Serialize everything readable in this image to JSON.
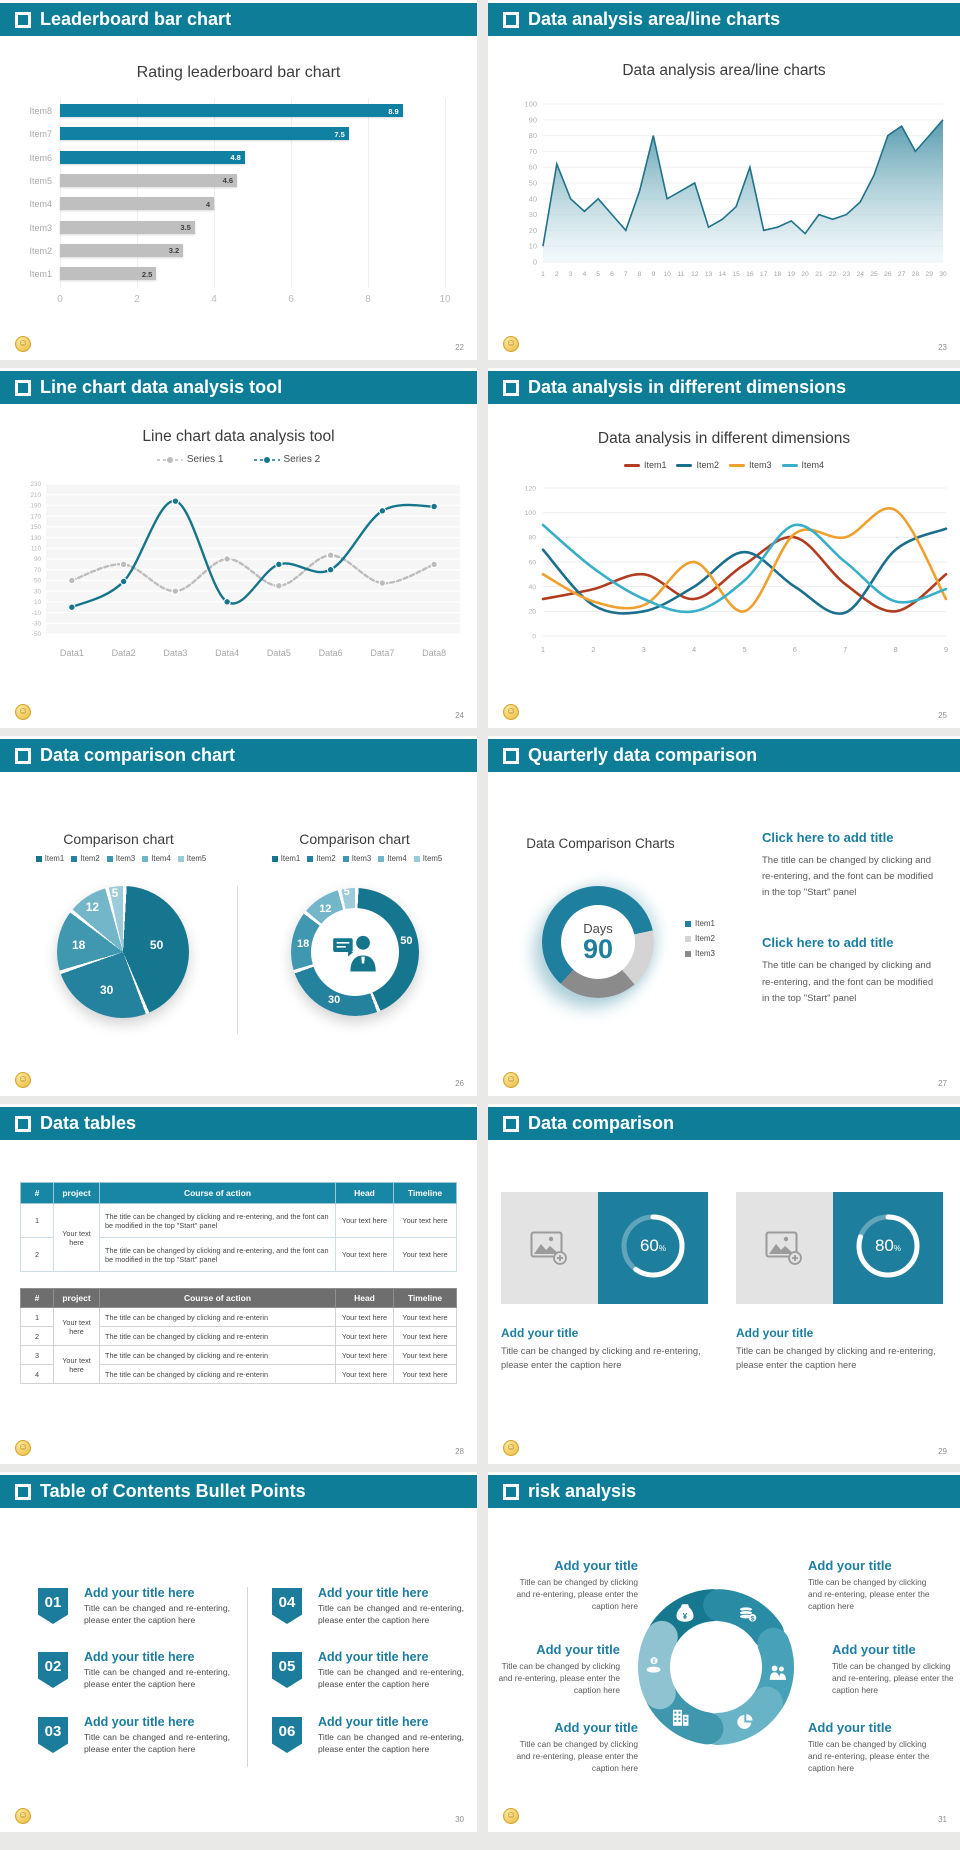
{
  "accent": "#0e7d97",
  "slides": [
    {
      "header": "Leaderboard bar chart",
      "page": "22"
    },
    {
      "header": "Data analysis area/line charts",
      "page": "23"
    },
    {
      "header": "Line chart data analysis tool",
      "page": "24"
    },
    {
      "header": "Data analysis in different dimensions",
      "page": "25"
    },
    {
      "header": "Data comparison chart",
      "page": "26"
    },
    {
      "header": "Quarterly data comparison",
      "page": "27"
    },
    {
      "header": "Data tables",
      "page": "28"
    },
    {
      "header": "Data comparison",
      "page": "29"
    },
    {
      "header": "Table of Contents Bullet Points",
      "page": "30"
    },
    {
      "header": "risk analysis",
      "page": "31"
    }
  ],
  "chart_data": [
    {
      "id": "leaderboard",
      "type": "bar",
      "orientation": "horizontal",
      "title": "Rating leaderboard bar chart",
      "categories": [
        "Item8",
        "Item7",
        "Item6",
        "Item5",
        "Item4",
        "Item3",
        "Item2",
        "Item1"
      ],
      "values": [
        8.9,
        7.5,
        4.8,
        4.6,
        4,
        3.5,
        3.2,
        2.5
      ],
      "bar_colors": [
        "#1081a3",
        "#1081a3",
        "#1081a3",
        "#bfbfbf",
        "#bfbfbf",
        "#bfbfbf",
        "#bfbfbf",
        "#bfbfbf"
      ],
      "xlim": [
        0,
        10
      ],
      "xticks": [
        0,
        2,
        4,
        6,
        8,
        10
      ],
      "grid": "vertical"
    },
    {
      "id": "area",
      "type": "area",
      "title": "Data analysis area/line charts",
      "x": [
        1,
        2,
        3,
        4,
        5,
        6,
        7,
        8,
        9,
        10,
        11,
        12,
        13,
        14,
        15,
        16,
        17,
        18,
        19,
        20,
        21,
        22,
        23,
        24,
        25,
        26,
        27,
        28,
        29,
        30
      ],
      "values": [
        10,
        62,
        40,
        32,
        40,
        30,
        20,
        45,
        80,
        40,
        45,
        50,
        22,
        27,
        35,
        60,
        20,
        22,
        26,
        18,
        30,
        27,
        30,
        38,
        55,
        80,
        86,
        70,
        80,
        90
      ],
      "ylim": [
        0,
        100
      ],
      "ytick_step": 10,
      "line_color": "#20718a",
      "grid": "horizontal"
    },
    {
      "id": "twolines",
      "type": "line",
      "title": "Line chart data analysis tool",
      "categories": [
        "Data1",
        "Data2",
        "Data3",
        "Data4",
        "Data5",
        "Data6",
        "Data7",
        "Data8"
      ],
      "series": [
        {
          "name": "Series 1",
          "color": "#bcbcbc",
          "dashed": true,
          "values": [
            50,
            80,
            30,
            90,
            40,
            97,
            45,
            80
          ]
        },
        {
          "name": "Series 2",
          "color": "#15758d",
          "dashed": false,
          "values": [
            0,
            48,
            198,
            10,
            80,
            70,
            180,
            188
          ]
        }
      ],
      "ylim": [
        -50,
        230
      ],
      "ytick_step": 20,
      "legend_position": "top",
      "plot_bg": "#f6f6f6"
    },
    {
      "id": "dimensions",
      "type": "line",
      "title": "Data analysis in different dimensions",
      "x": [
        1,
        2,
        3,
        4,
        5,
        6,
        7,
        8,
        9
      ],
      "series": [
        {
          "name": "Item1",
          "color": "#b23c20",
          "values": [
            30,
            38,
            50,
            30,
            58,
            80,
            42,
            20,
            50
          ]
        },
        {
          "name": "Item2",
          "color": "#1b6f8c",
          "values": [
            70,
            25,
            20,
            40,
            68,
            40,
            19,
            70,
            87
          ]
        },
        {
          "name": "Item3",
          "color": "#efa02f",
          "values": [
            50,
            28,
            25,
            60,
            20,
            83,
            80,
            102,
            30
          ]
        },
        {
          "name": "Item4",
          "color": "#38aec8",
          "values": [
            90,
            55,
            30,
            20,
            45,
            90,
            60,
            28,
            38
          ]
        }
      ],
      "ylim": [
        0,
        120
      ],
      "ytick_step": 20,
      "legend_position": "top",
      "grid": "horizontal"
    },
    {
      "id": "comparison-pie",
      "type": "pie",
      "title": "Comparison chart",
      "legend": [
        "Item1",
        "Item2",
        "Item3",
        "Item4",
        "Item5"
      ],
      "values": [
        50,
        30,
        18,
        12,
        5
      ],
      "colors": [
        "#16758f",
        "#25829e",
        "#3f97b0",
        "#73b6c9",
        "#9ccbd9"
      ]
    },
    {
      "id": "comparison-donut",
      "type": "pie",
      "subtype": "donut",
      "title": "Comparison chart",
      "legend": [
        "Item1",
        "Item2",
        "Item3",
        "Item4",
        "Item5"
      ],
      "values": [
        50,
        30,
        18,
        12,
        5
      ],
      "colors": [
        "#16758f",
        "#25829e",
        "#3f97b0",
        "#73b6c9",
        "#9ccbd9"
      ],
      "center_icon": "businessman"
    },
    {
      "id": "days-donut",
      "type": "pie",
      "subtype": "donut",
      "title": "Data Comparison Charts",
      "legend": [
        "Item1",
        "Item2",
        "Item3"
      ],
      "values": [
        60,
        17,
        23
      ],
      "colors": [
        "#1e7f9e",
        "#d4d4d4",
        "#8b8b8b"
      ],
      "center_label": "Days",
      "center_value": "90"
    },
    {
      "id": "progress-rings",
      "type": "pie",
      "subtype": "ring",
      "values": [
        60,
        80
      ],
      "labels": [
        "60%",
        "80%"
      ],
      "ring_color": "#ffffff",
      "panel_color": "#1e7e9e"
    }
  ],
  "quarterly": {
    "blocks": [
      {
        "title": "Click here to add title",
        "body": "The title can be changed by clicking and re-entering, and the font can be modified in the top \"Start\" panel"
      },
      {
        "title": "Click here to add title",
        "body": "The title can be changed by clicking and re-entering, and the font can be modified in the top \"Start\" panel"
      }
    ]
  },
  "tables": {
    "columns": [
      "#",
      "project",
      "Course of action",
      "Head",
      "Timeline"
    ],
    "table1": {
      "merged_project": "Your text here",
      "rows": [
        {
          "num": "1",
          "action": "The title can be changed by clicking and re-entering, and the font can be modified in the top \"Start\" panel",
          "head": "Your text here",
          "timeline": "Your text here"
        },
        {
          "num": "2",
          "action": "The title can be changed by clicking and re-entering, and the font can be modified in the top \"Start\" panel",
          "head": "Your text here",
          "timeline": "Your text here"
        }
      ]
    },
    "table2": {
      "merged_project": "Your text here",
      "rows": [
        {
          "num": "1",
          "action": "The title can be changed by clicking and re-enterin",
          "head": "Your text here",
          "timeline": "Your text here"
        },
        {
          "num": "2",
          "action": "The title can be changed by clicking and re-enterin",
          "head": "Your text here",
          "timeline": "Your text here"
        },
        {
          "num": "3",
          "action": "The title can be changed by clicking and re-enterin",
          "head": "Your text here",
          "timeline": "Your text here"
        },
        {
          "num": "4",
          "action": "The title can be changed by clicking and re-enterin",
          "head": "Your text here",
          "timeline": "Your text here"
        }
      ]
    }
  },
  "comparison_cards": [
    {
      "percent": 60,
      "label": "60",
      "title": "Add your title",
      "caption": "Title can be changed by clicking and re-entering, please enter the caption here"
    },
    {
      "percent": 80,
      "label": "80",
      "title": "Add your title",
      "caption": "Title can be changed by clicking and re-entering, please enter the caption here"
    }
  ],
  "toc": {
    "items": [
      {
        "num": "01",
        "title": "Add your title here",
        "caption": "Title can be changed and re-entering, please enter the caption here"
      },
      {
        "num": "02",
        "title": "Add your title here",
        "caption": "Title can be changed and re-entering, please enter the caption here"
      },
      {
        "num": "03",
        "title": "Add your title here",
        "caption": "Title can be changed and re-entering, please enter the caption here"
      },
      {
        "num": "04",
        "title": "Add your title here",
        "caption": "Title can be changed and re-entering, please enter the caption here"
      },
      {
        "num": "05",
        "title": "Add your title here",
        "caption": "Title can be changed and re-entering, please enter the caption here"
      },
      {
        "num": "06",
        "title": "Add your title here",
        "caption": "Title can be changed and re-entering, please enter the caption here"
      }
    ]
  },
  "risk": {
    "blocks": [
      {
        "pos": "tl",
        "title": "Add your title",
        "caption": "Title can be changed by clicking and re-entering, please enter the caption here"
      },
      {
        "pos": "tr",
        "title": "Add your title",
        "caption": "Title can be changed by clicking and re-entering, please enter the caption here"
      },
      {
        "pos": "ml",
        "title": "Add your title",
        "caption": "Title can be changed by clicking and re-entering, please enter the caption here"
      },
      {
        "pos": "mr",
        "title": "Add your title",
        "caption": "Title can be changed by clicking and re-entering, please enter the caption here"
      },
      {
        "pos": "bl",
        "title": "Add your title",
        "caption": "Title can be changed by clicking and re-entering, please enter the caption here"
      },
      {
        "pos": "br",
        "title": "Add your title",
        "caption": "Title can be changed by clicking and re-entering, please enter the caption here"
      }
    ],
    "icons": [
      "money-bag",
      "coins",
      "people",
      "pie-chart",
      "building",
      "hand-coin"
    ],
    "segment_colors": [
      "#15788f",
      "#2a8ba5",
      "#47a2b9",
      "#68b4c6",
      "#3f97ad",
      "#8fc3d2"
    ]
  }
}
